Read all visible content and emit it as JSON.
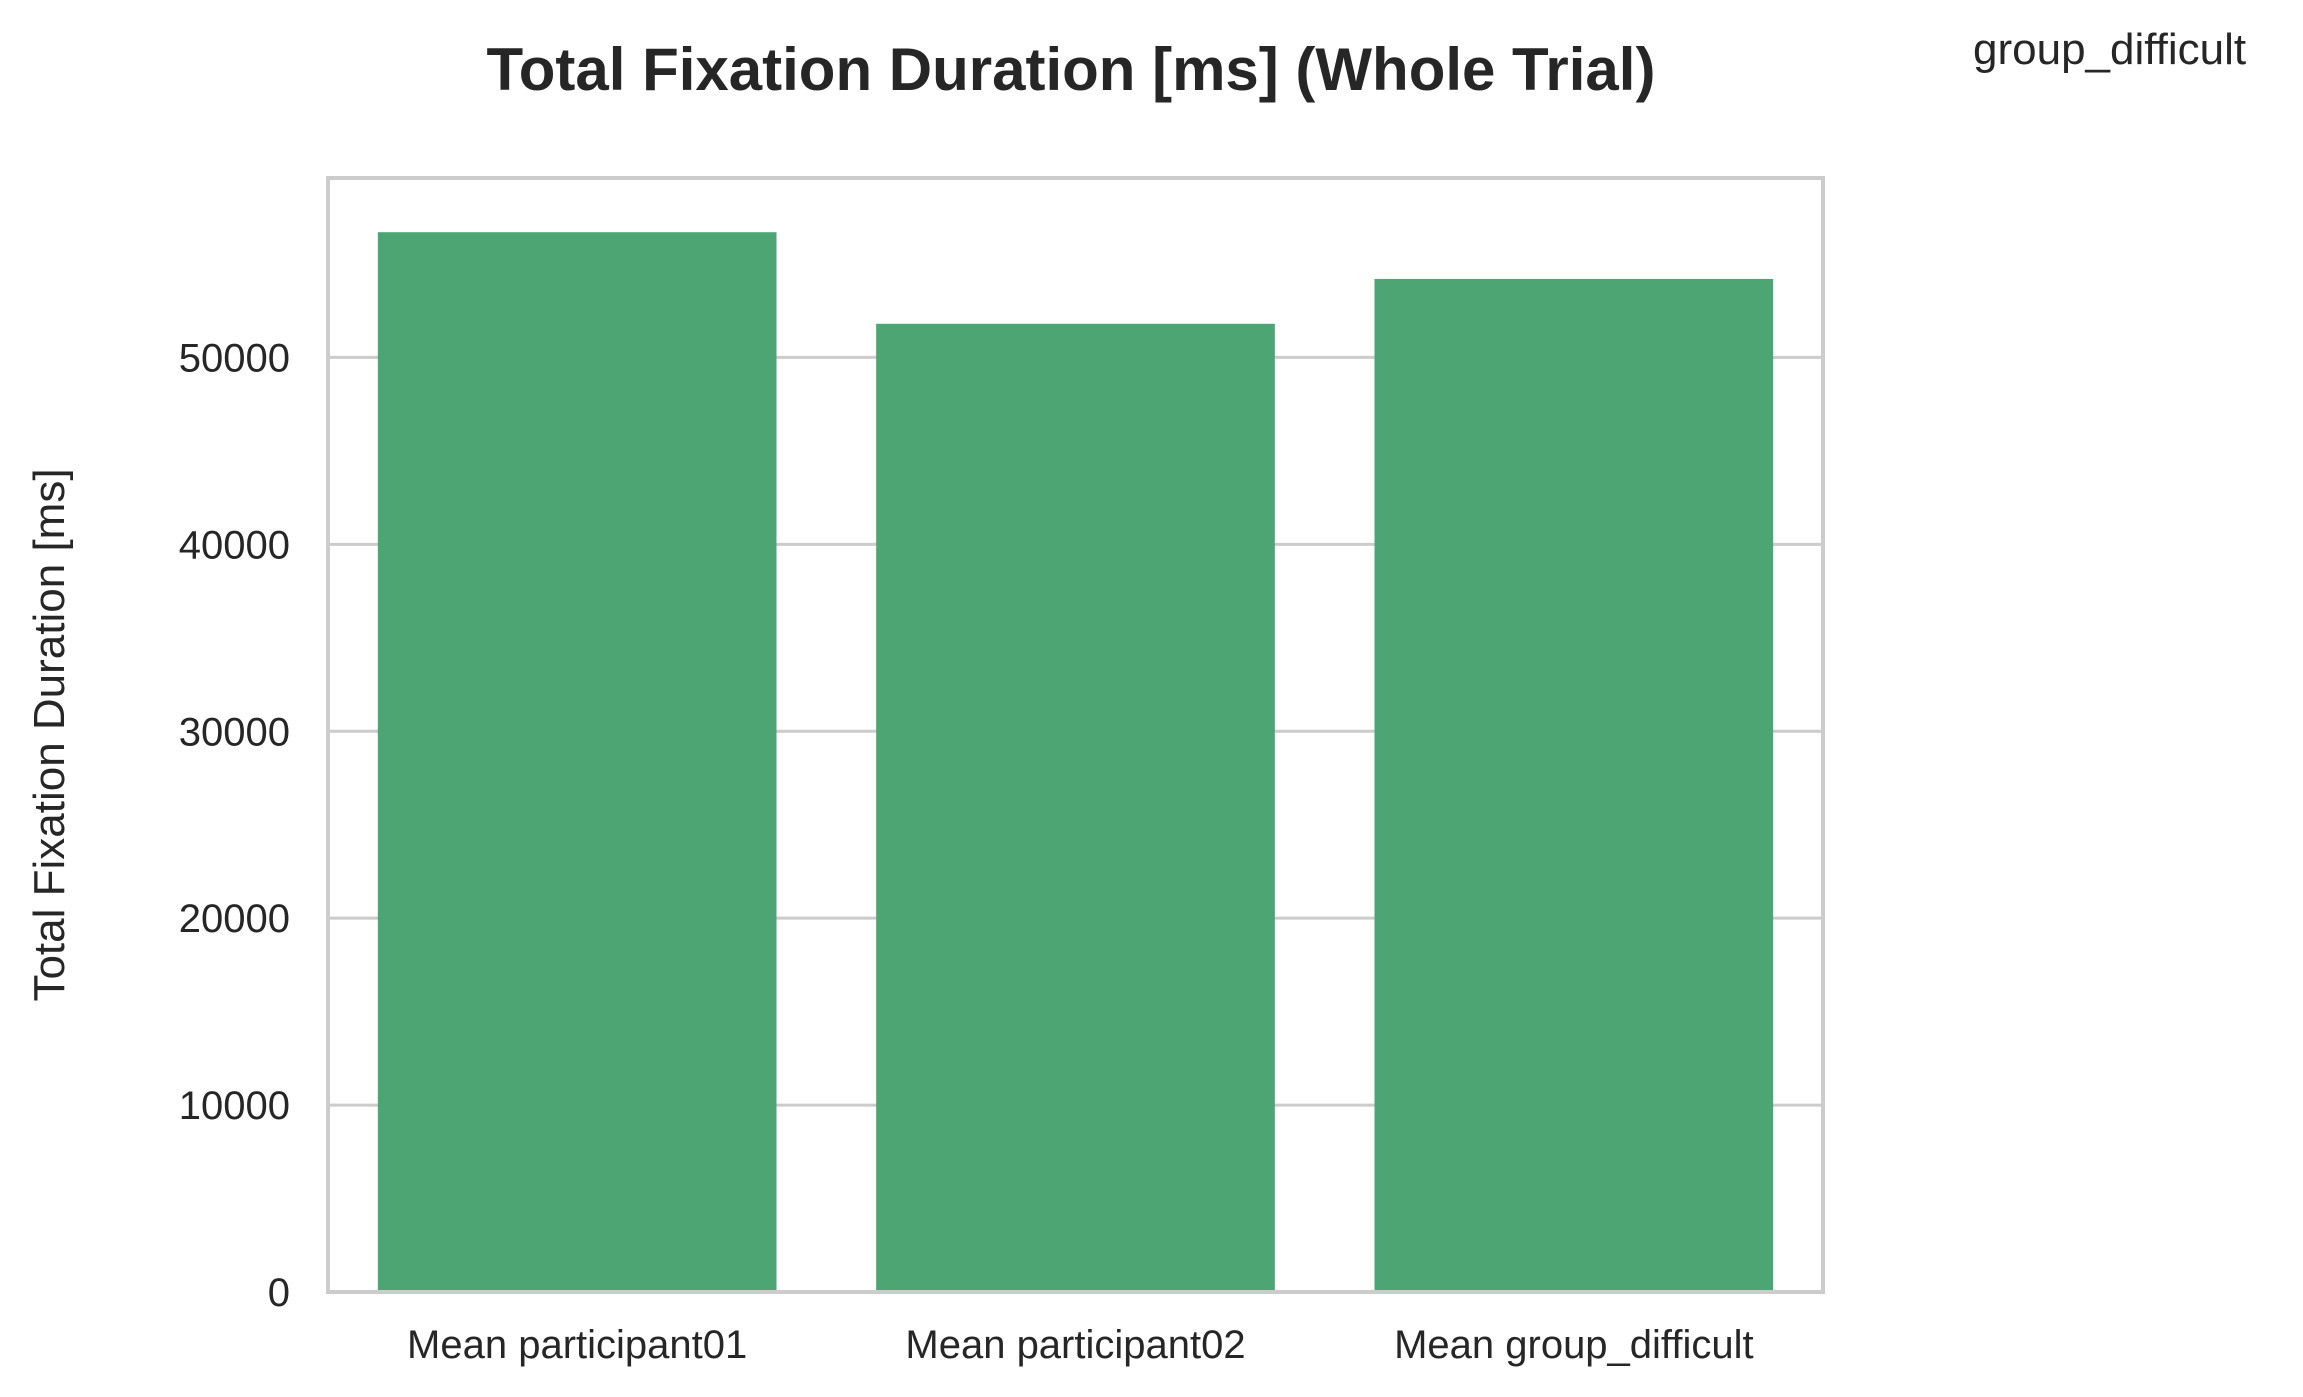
{
  "figure": {
    "corner_label": "group_difficult"
  },
  "colors": {
    "bar": "#4ea574",
    "grid": "#cccccc",
    "frame": "#cccccc",
    "text": "#262626"
  },
  "chart_data": {
    "type": "bar",
    "title": "Total Fixation Duration [ms] (Whole Trial)",
    "xlabel": "",
    "ylabel": "Total Fixation Duration [ms]",
    "categories": [
      "Mean participant01",
      "Mean participant02",
      "Mean group_difficult"
    ],
    "values": [
      56700,
      51800,
      54200
    ],
    "yticks": [
      0,
      10000,
      20000,
      30000,
      40000,
      50000
    ],
    "ylim": [
      0,
      59600
    ],
    "grid": true,
    "legend": "none"
  }
}
